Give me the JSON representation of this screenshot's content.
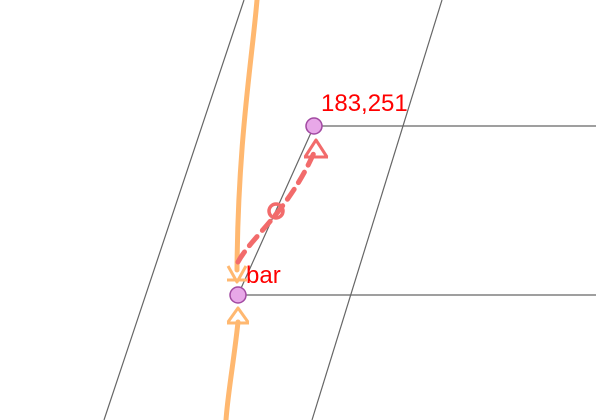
{
  "colors": {
    "guide_line": "#666666",
    "orange_path": "#FFB870",
    "red_dashed": "#F26B6B",
    "label_red": "#FF0000",
    "node_fill": "#E8A8E8",
    "node_stroke": "#A24AA2"
  },
  "labels": {
    "top_node": "183,251",
    "bottom_node": "bar"
  },
  "icons": {
    "node": "circle-handle-icon",
    "arrow_head": "chevron-up-arrow-icon",
    "midpoint": "ring-marker-icon"
  }
}
